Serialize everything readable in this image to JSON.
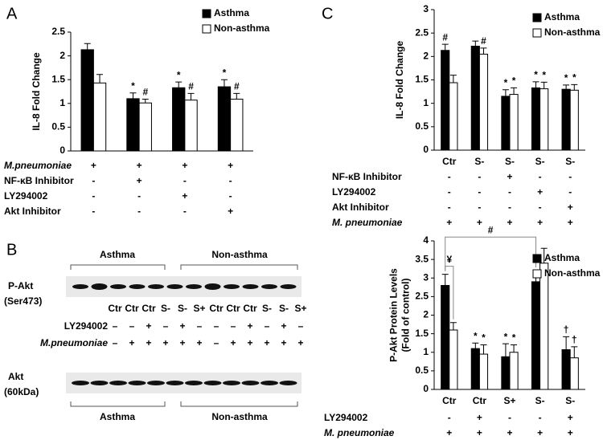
{
  "chart_data": [
    {
      "type": "bar",
      "panel_label": "A",
      "ylabel": "IL-8  Fold Change",
      "categories": [
        null,
        null,
        null,
        null
      ],
      "series": [
        {
          "name": "Asthma",
          "color": "#000000",
          "values": [
            2.13,
            1.1,
            1.33,
            1.35
          ],
          "errors": [
            0.13,
            0.12,
            0.12,
            0.15
          ],
          "marks": [
            null,
            "*",
            "*",
            "*"
          ]
        },
        {
          "name": "Non-asthma",
          "color": "#ffffff",
          "values": [
            1.43,
            1.01,
            1.07,
            1.09
          ],
          "errors": [
            0.18,
            0.08,
            0.14,
            0.12
          ],
          "marks": [
            null,
            "#",
            "#",
            "#"
          ]
        }
      ],
      "conditions": [
        {
          "label": "M.pneumoniae",
          "signs": [
            "+",
            "+",
            "+",
            "+"
          ]
        },
        {
          "label": "NF-κB Inhibitor",
          "signs": [
            "-",
            "+",
            "-",
            "-"
          ]
        },
        {
          "label": "LY294002",
          "signs": [
            "-",
            "-",
            "+",
            "-"
          ]
        },
        {
          "label": "Akt Inhibitor",
          "signs": [
            "-",
            "-",
            "-",
            "+"
          ]
        }
      ],
      "ylim": [
        0,
        2.5
      ],
      "yticks": [
        0,
        0.5,
        1,
        1.5,
        2,
        2.5
      ],
      "legend": "top right"
    },
    {
      "type": "bar",
      "panel_label": "C",
      "ylabel": "IL-8 Fold Change",
      "categories": [
        "Ctr",
        "S-",
        "S-",
        "S-",
        "S-"
      ],
      "series": [
        {
          "name": "Asthma",
          "color": "#000000",
          "values": [
            2.13,
            2.22,
            1.15,
            1.33,
            1.3
          ],
          "errors": [
            0.13,
            0.11,
            0.14,
            0.13,
            0.09
          ],
          "marks": [
            "#",
            null,
            "*",
            "*",
            "*"
          ]
        },
        {
          "name": "Non-asthma",
          "color": "#ffffff",
          "values": [
            1.44,
            2.05,
            1.19,
            1.31,
            1.28
          ],
          "errors": [
            0.16,
            0.13,
            0.14,
            0.14,
            0.12
          ],
          "marks": [
            null,
            "#",
            "*",
            "*",
            "*"
          ]
        }
      ],
      "conditions": [
        {
          "label": "NF-κB Inhibitor",
          "signs": [
            "-",
            "-",
            "+",
            "-",
            "-"
          ]
        },
        {
          "label": "LY294002",
          "signs": [
            "-",
            "-",
            "-",
            "+",
            "-"
          ]
        },
        {
          "label": "Akt Inhibitor",
          "signs": [
            "-",
            "-",
            "-",
            "-",
            "+"
          ]
        },
        {
          "label": "M. pneumoniae",
          "signs": [
            "+",
            "+",
            "+",
            "+",
            "+"
          ]
        }
      ],
      "ylim": [
        0,
        3
      ],
      "yticks": [
        0,
        0.5,
        1,
        1.5,
        2,
        2.5,
        3
      ],
      "legend": "top right"
    },
    {
      "type": "bar",
      "ylabel": [
        "P-Akt Protein Levels",
        "(Fold of control)"
      ],
      "categories": [
        "Ctr",
        "Ctr",
        "S+",
        "S-",
        "S-"
      ],
      "series": [
        {
          "name": "Asthma",
          "color": "#000000",
          "values": [
            2.8,
            1.1,
            0.88,
            2.9,
            1.07
          ],
          "errors": [
            0.3,
            0.15,
            0.35,
            0.3,
            0.35
          ],
          "marks": [
            null,
            "*",
            "*",
            null,
            "†"
          ]
        },
        {
          "name": "Non-asthma",
          "color": "#ffffff",
          "values": [
            1.6,
            0.95,
            1.0,
            3.4,
            0.85
          ],
          "errors": [
            0.2,
            0.25,
            0.2,
            0.4,
            0.3
          ],
          "marks": [
            null,
            "*",
            "*",
            null,
            "†"
          ]
        }
      ],
      "brackets": [
        {
          "text": "¥",
          "from": {
            "series": 0,
            "index": 0
          },
          "to": {
            "series": 1,
            "index": 0
          }
        },
        {
          "text": "#",
          "from": {
            "series": 0,
            "index": 0
          },
          "to": {
            "series": 0,
            "index": 3
          }
        }
      ],
      "conditions": [
        {
          "label": "LY294002",
          "signs": [
            "-",
            "+",
            "-",
            "-",
            "+"
          ]
        },
        {
          "label": "M. pneumoniae",
          "signs": [
            "+",
            "+",
            "+",
            "+",
            "+"
          ]
        }
      ],
      "ylim": [
        0,
        4
      ],
      "yticks": [
        0,
        0.5,
        1,
        1.5,
        2,
        2.5,
        3,
        3.5,
        4
      ],
      "legend": "top right"
    }
  ],
  "blot": {
    "panel_label": "B",
    "groups": [
      "Asthma",
      "Non-asthma"
    ],
    "top_label": [
      "P-Akt",
      "(Ser473)"
    ],
    "lanes": [
      "Ctr",
      "Ctr",
      "Ctr",
      "S-",
      "S-",
      "S+",
      "Ctr",
      "Ctr",
      "Ctr",
      "S-",
      "S-",
      "S+"
    ],
    "rows": [
      {
        "label": "LY294002",
        "signs": [
          "–",
          "–",
          "+",
          "–",
          "+",
          "–",
          "–",
          "–",
          "+",
          "–",
          "+",
          "–"
        ]
      },
      {
        "label": "M.pneumoniae",
        "signs": [
          "–",
          "+",
          "+",
          "+",
          "+",
          "+",
          "–",
          "+",
          "+",
          "+",
          "+",
          "+"
        ]
      }
    ],
    "bottom_label": [
      "Akt",
      "(60kDa)"
    ],
    "bottom_groups": [
      "Asthma",
      "Non-asthma"
    ]
  }
}
